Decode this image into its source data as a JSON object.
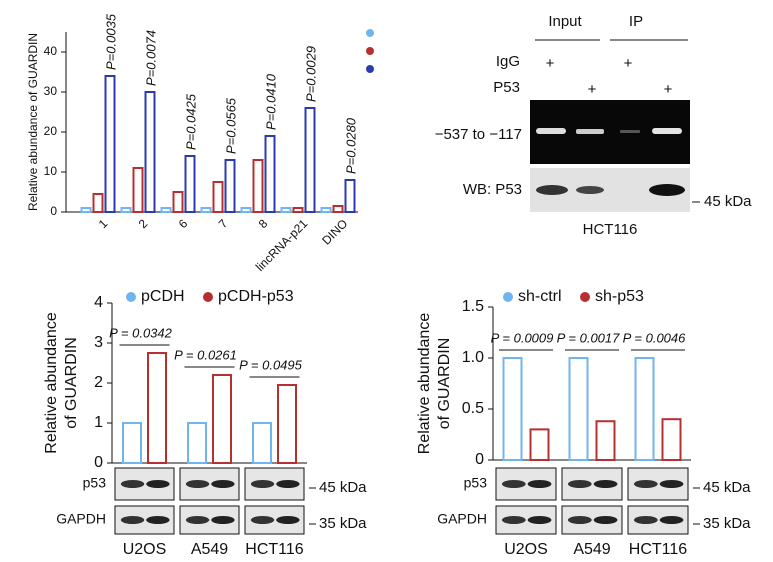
{
  "chart_data": [
    {
      "type": "bar",
      "ylabel": [
        "Relative abundance of GUARDIN"
      ],
      "categories": [
        "1",
        "2",
        "6",
        "7",
        "8",
        "lincRNA-p21",
        "DINO"
      ],
      "series": [
        {
          "color": "#6fb5f0",
          "values": [
            1,
            1,
            1,
            1,
            1,
            1,
            1
          ]
        },
        {
          "color": "#b5302e",
          "values": [
            4.5,
            11,
            5,
            7.5,
            13,
            1,
            1.5
          ]
        },
        {
          "color": "#2a3bb0",
          "values": [
            34,
            30,
            14,
            13,
            19,
            26,
            8
          ]
        }
      ],
      "annotations": [
        "P=0.0035",
        "P=0.0074",
        "P=0.0425",
        "P=0.0565",
        "P=0.0410",
        "P=0.0029",
        "P=0.0280"
      ],
      "ylim": [
        0,
        45
      ],
      "yticks": [
        0,
        10,
        20,
        30,
        40
      ]
    },
    {
      "type": "bar",
      "ylabel": [
        "Relative abundance",
        "of GUARDIN"
      ],
      "categories": [
        "U2OS",
        "A549",
        "HCT116"
      ],
      "series": [
        {
          "name": "pCDH",
          "color": "#6fb5f0",
          "values": [
            1,
            1,
            1
          ]
        },
        {
          "name": "pCDH-p53",
          "color": "#b5302e",
          "values": [
            2.75,
            2.2,
            1.95
          ]
        }
      ],
      "annotations": [
        "P = 0.0342",
        "P = 0.0261",
        "P = 0.0495"
      ],
      "ylim": [
        0,
        4
      ],
      "yticks": [
        0,
        1,
        2,
        3,
        4
      ]
    },
    {
      "type": "bar",
      "ylabel": [
        "Relative abundance",
        "of GUARDIN"
      ],
      "categories": [
        "U2OS",
        "A549",
        "HCT116"
      ],
      "series": [
        {
          "name": "sh-ctrl",
          "color": "#6fb5f0",
          "values": [
            1,
            1,
            1
          ]
        },
        {
          "name": "sh-p53",
          "color": "#b5302e",
          "values": [
            0.3,
            0.38,
            0.4
          ]
        }
      ],
      "annotations": [
        "P = 0.0009",
        "P = 0.0017",
        "P = 0.0046"
      ],
      "ylim": [
        0,
        1.5
      ],
      "yticks": [
        0,
        0.5,
        {
          "value": 1,
          "label": "1.0"
        },
        1.5
      ]
    }
  ],
  "top_blot": {
    "columns": [
      "Input",
      "IP"
    ],
    "rows": [
      {
        "label": "IgG",
        "marks": [
          "+",
          "+"
        ]
      },
      {
        "label": "P53",
        "marks": [
          "+",
          "+"
        ]
      }
    ],
    "bands": [
      "−537 to −117",
      "WB: P53"
    ],
    "marker": "45 kDa",
    "cell_line": "HCT116"
  },
  "bottom_blots": [
    {
      "rows": [
        "p53",
        "GAPDH"
      ],
      "markers": [
        "45 kDa",
        "35 kDa"
      ]
    },
    {
      "rows": [
        "p53",
        "GAPDH"
      ],
      "markers": [
        "45 kDa",
        "35 kDa"
      ]
    }
  ]
}
